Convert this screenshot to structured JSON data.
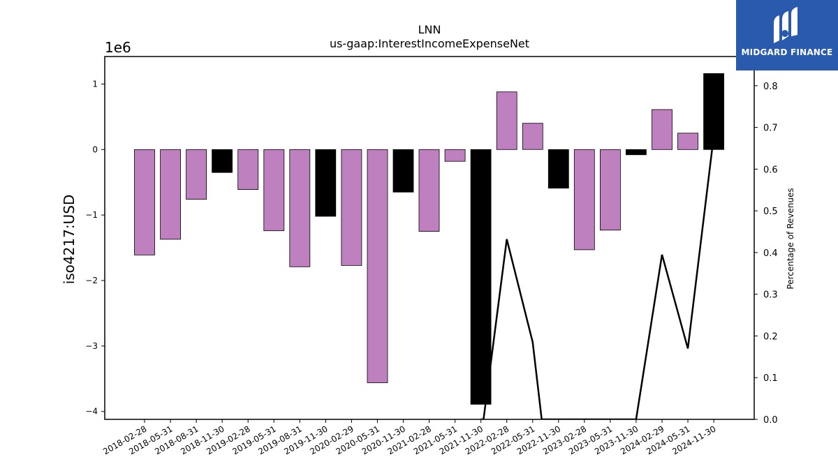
{
  "logo": {
    "text": "MIDGARD FINANCE",
    "icon": "midgard-m-icon",
    "background": "#2a5aae"
  },
  "chart_data": {
    "type": "bar",
    "title": "LNN",
    "subtitle": "us-gaap:InterestIncomeExpenseNet",
    "ylabel": "iso4217:USD",
    "y_scale_label": "1e6",
    "y2label": "Percentage of Revenues",
    "ylim": [
      -4.12,
      1.42
    ],
    "y2lim": [
      0.0,
      0.87
    ],
    "yticks": [
      -4,
      -3,
      -2,
      -1,
      0,
      1
    ],
    "ytick_labels": [
      "−4",
      "−3",
      "−2",
      "−1",
      "0",
      "1"
    ],
    "y2ticks": [
      0.0,
      0.1,
      0.2,
      0.3,
      0.4,
      0.5,
      0.6,
      0.7,
      0.8
    ],
    "y2tick_labels": [
      "0.0",
      "0.1",
      "0.2",
      "0.3",
      "0.4",
      "0.5",
      "0.6",
      "0.7",
      "0.8"
    ],
    "colors": {
      "quarter": "#bf80bf",
      "annual": "#000000",
      "line": "#000000"
    },
    "categories": [
      "2018-02-28",
      "2018-05-31",
      "2018-08-31",
      "2018-11-30",
      "2019-02-28",
      "2019-05-31",
      "2019-08-31",
      "2019-11-30",
      "2020-02-29",
      "2020-05-31",
      "2020-11-30",
      "2021-02-28",
      "2021-05-31",
      "2021-11-30",
      "2022-02-28",
      "2022-05-31",
      "2022-11-30",
      "2023-02-28",
      "2023-05-31",
      "2023-11-30",
      "2024-02-29",
      "2024-05-31",
      "2024-11-30"
    ],
    "values": [
      -1.61,
      -1.37,
      -0.76,
      -0.35,
      -0.61,
      -1.24,
      -1.79,
      -1.02,
      -1.77,
      -3.56,
      -0.65,
      -1.25,
      -0.18,
      -3.89,
      0.88,
      0.4,
      -0.59,
      -1.53,
      -1.23,
      -0.08,
      0.61,
      0.25,
      1.16
    ],
    "bar_kind": [
      "quarter",
      "quarter",
      "quarter",
      "annual",
      "quarter",
      "quarter",
      "quarter",
      "annual",
      "quarter",
      "quarter",
      "annual",
      "quarter",
      "quarter",
      "annual",
      "quarter",
      "quarter",
      "annual",
      "quarter",
      "quarter",
      "annual",
      "quarter",
      "quarter",
      "annual"
    ],
    "line_series": {
      "name": "Percentage of Revenues",
      "x_index": [
        13,
        13.1,
        14,
        15,
        15.35,
        19,
        20,
        21,
        22
      ],
      "values": [
        0.0,
        0.0,
        0.432,
        0.185,
        0.0,
        0.0,
        0.395,
        0.17,
        0.68
      ]
    }
  }
}
